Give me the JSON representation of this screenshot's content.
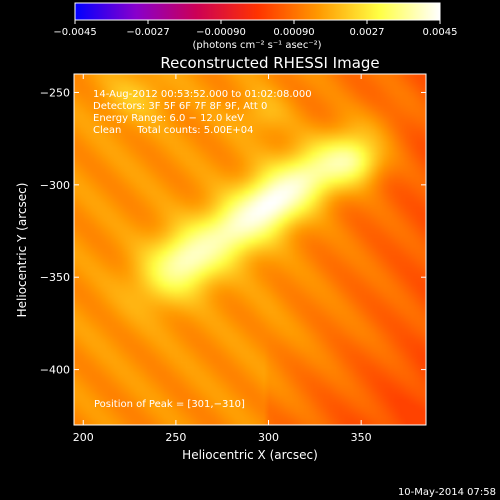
{
  "chart_data": {
    "type": "heatmap",
    "title": "Reconstructed RHESSI Image",
    "xlabel": "Heliocentric X (arcsec)",
    "ylabel": "Heliocentric Y (arcsec)",
    "xlim": [
      195,
      385
    ],
    "ylim": [
      -430,
      -240
    ],
    "x_ticks": [
      200,
      250,
      300,
      350
    ],
    "y_ticks": [
      -250,
      -300,
      -350,
      -400
    ],
    "colorbar": {
      "range": [
        -0.0045,
        0.0045
      ],
      "tick_labels": [
        "−0.0045",
        "−0.0027",
        "−0.00090",
        "0.00090",
        "0.0027",
        "0.0045"
      ],
      "tick_values": [
        -0.0045,
        -0.0027,
        -0.0009,
        0.0009,
        0.0027,
        0.0045
      ],
      "units": "(photons cm⁻² s⁻¹ asec⁻²)",
      "colormap": [
        "#0000ff",
        "#8800cc",
        "#cc0055",
        "#ff3300",
        "#ff9900",
        "#ffff44",
        "#ffffff"
      ]
    },
    "info_lines": [
      "14‐Aug‐2012 00:53:52.000 to 01:02:08.000",
      "Detectors: 3F 5F 6F 7F 8F 9F, Att 0",
      "Energy Range: 6.0 − 12.0 keV",
      "Clean     Total counts: 5.00E+04"
    ],
    "peak_label": "Position of Peak = [301,−310]",
    "peak": [
      301,
      -310
    ],
    "sources": [
      {
        "x": 301,
        "y": -310,
        "sigma_major": 36,
        "sigma_minor": 11,
        "angle_deg": 35,
        "amp": 1.0
      },
      {
        "x": 252,
        "y": -343,
        "sigma_major": 16,
        "sigma_minor": 12,
        "angle_deg": 35,
        "amp": 0.55
      },
      {
        "x": 346,
        "y": -288,
        "sigma_major": 11,
        "sigma_minor": 9,
        "angle_deg": 0,
        "amp": 0.45
      },
      {
        "x": 228,
        "y": -252,
        "sigma_major": 12,
        "sigma_minor": 10,
        "angle_deg": 0,
        "amp": 0.22
      },
      {
        "x": 296,
        "y": -262,
        "sigma_major": 10,
        "sigma_minor": 8,
        "angle_deg": 0,
        "amp": 0.18
      }
    ]
  },
  "footer_timestamp": "10‐May‐2014 07:58"
}
